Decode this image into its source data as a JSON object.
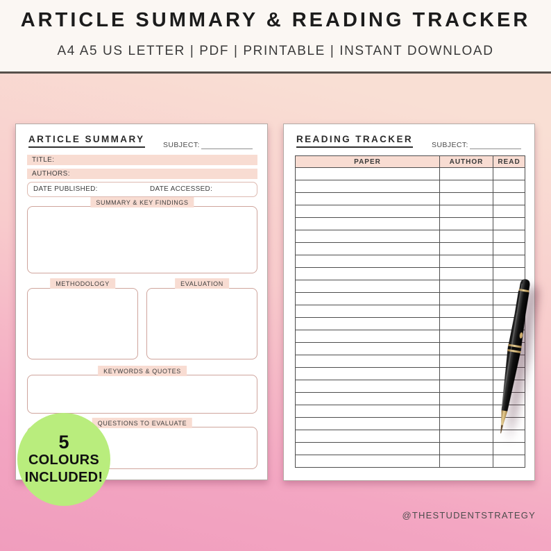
{
  "banner": {
    "title": "ARTICLE SUMMARY & READING TRACKER",
    "subtitle": "A4 A5 US LETTER | PDF | PRINTABLE | INSTANT DOWNLOAD"
  },
  "article_summary": {
    "title": "ARTICLE SUMMARY",
    "subject_label": "SUBJECT:",
    "title_field_label": "TITLE:",
    "authors_field_label": "AUTHORS:",
    "date_published_label": "DATE PUBLISHED:",
    "date_accessed_label": "DATE ACCESSED:",
    "summary_section_label": "SUMMARY & KEY FINDINGS",
    "methodology_section_label": "METHODOLOGY",
    "evaluation_section_label": "EVALUATION",
    "keywords_section_label": "KEYWORDS & QUOTES",
    "questions_section_label": "QUESTIONS TO EVALUATE"
  },
  "reading_tracker": {
    "title": "READING TRACKER",
    "subject_label": "SUBJECT:",
    "columns": [
      "PAPER",
      "AUTHOR",
      "READ"
    ],
    "empty_row_count": 24
  },
  "badge": {
    "count": "5",
    "line2": "COLOURS",
    "line3": "INCLUDED!"
  },
  "footer": {
    "handle": "@THESTUDENTSTRATEGY"
  },
  "colors": {
    "accent_peach": "#f8dcd2",
    "box_border": "#cfa49c",
    "badge_green": "#b9ed7d",
    "background_top": "#f9dfd4",
    "background_bottom": "#f09dbd",
    "banner_divider": "#56504b"
  }
}
